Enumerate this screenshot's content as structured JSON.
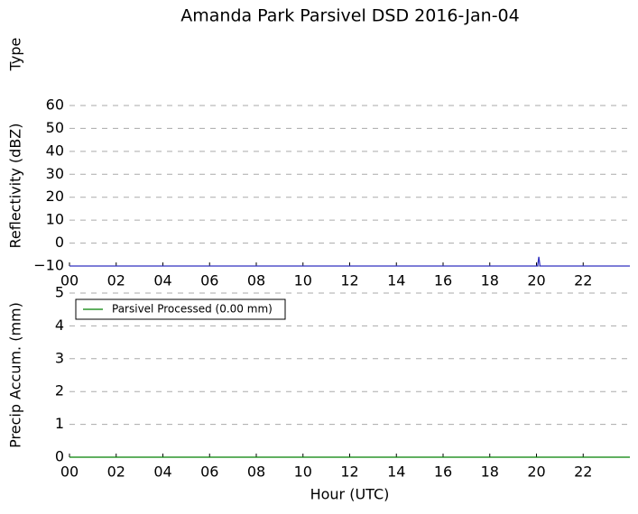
{
  "chart_data": [
    {
      "type": "line",
      "title": "Amanda Park Parsivel DSD 2016-Jan-04",
      "y_label": "Type",
      "series": []
    },
    {
      "type": "line",
      "y_label": "Reflectivity (dBZ)",
      "x": [
        0,
        20.05,
        20.1,
        20.15,
        24
      ],
      "series": [
        {
          "name": "Reflectivity",
          "color": "#3030c0",
          "values": [
            -10,
            -10,
            -6,
            -10,
            -10
          ]
        }
      ],
      "xlim": [
        0,
        24
      ],
      "xticks": [
        {
          "value": 0,
          "label": "00"
        },
        {
          "value": 2,
          "label": "02"
        },
        {
          "value": 4,
          "label": "04"
        },
        {
          "value": 6,
          "label": "06"
        },
        {
          "value": 8,
          "label": "08"
        },
        10,
        12,
        14,
        16,
        18,
        20,
        22
      ],
      "ylim": [
        -10,
        60
      ],
      "yticks": [
        {
          "value": -10,
          "label": "−10"
        },
        0,
        10,
        20,
        30,
        40,
        50,
        60
      ],
      "grid": true
    },
    {
      "type": "line",
      "y_label": "Precip Accum. (mm)",
      "x_label": "Hour (UTC)",
      "x": [
        0,
        24
      ],
      "series": [
        {
          "name": "Parsivel Processed (0.00 mm)",
          "color": "#008000",
          "values": [
            0,
            0
          ]
        }
      ],
      "xlim": [
        0,
        24
      ],
      "xticks": [
        {
          "value": 0,
          "label": "00"
        },
        {
          "value": 2,
          "label": "02"
        },
        {
          "value": 4,
          "label": "04"
        },
        {
          "value": 6,
          "label": "06"
        },
        {
          "value": 8,
          "label": "08"
        },
        10,
        12,
        14,
        16,
        18,
        20,
        22
      ],
      "ylim": [
        0,
        5
      ],
      "yticks": [
        0,
        1,
        2,
        3,
        4,
        5
      ],
      "grid": true,
      "legend": "upper left"
    }
  ]
}
